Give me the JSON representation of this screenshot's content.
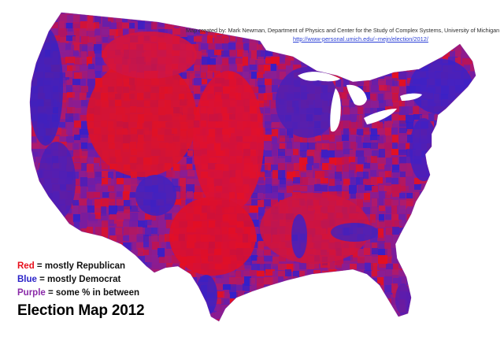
{
  "credit": {
    "line": "Map created by:  Mark Newman, Department of Physics and Center for the Study of Complex Systems, University of Michigan",
    "url": "http://www-personal.umich.edu/~mejn/election/2012/"
  },
  "legend": [
    {
      "word": "Red",
      "text": " = mostly Republican",
      "color": "#e8101c"
    },
    {
      "word": "Blue",
      "text": " = mostly Democrat",
      "color": "#2a22c8"
    },
    {
      "word": "Purple",
      "text": " = some % in between",
      "color": "#8a2aa8"
    }
  ],
  "title": "Election Map 2012",
  "colors": {
    "republican": "#e8101c",
    "democrat": "#2a22c8",
    "purple": "#7a1aa0",
    "lakes": "#ffffff"
  }
}
